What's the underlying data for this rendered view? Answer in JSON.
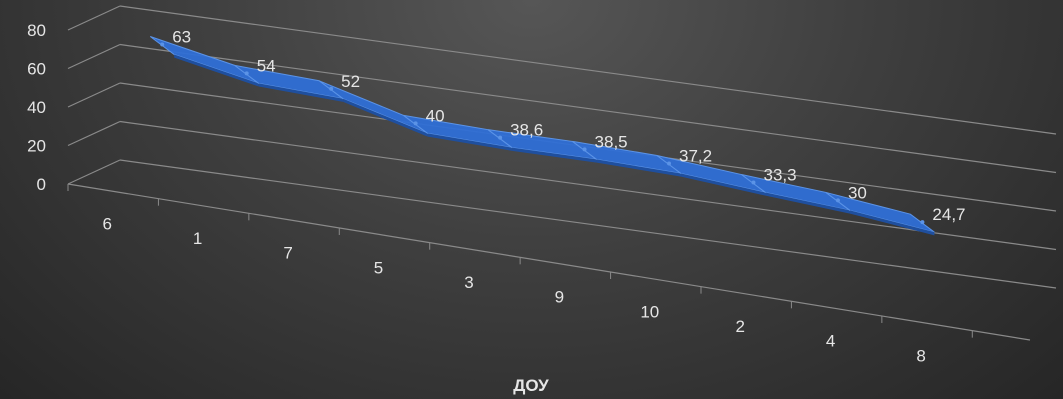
{
  "chart_data": {
    "type": "line",
    "title": "",
    "xlabel": "ДОУ",
    "ylabel": "",
    "categories": [
      "6",
      "1",
      "7",
      "5",
      "3",
      "9",
      "10",
      "2",
      "4",
      "8"
    ],
    "series": [
      {
        "values": [
          63,
          54,
          52,
          40,
          38.6,
          38.5,
          37.2,
          33.3,
          30,
          24.7
        ],
        "data_labels": [
          "63",
          "54",
          "52",
          "40",
          "38,6",
          "38,5",
          "37,2",
          "33,3",
          "30",
          "24,7"
        ]
      }
    ],
    "ylim": [
      0,
      80
    ],
    "y_ticks": [
      0,
      20,
      40,
      60,
      80
    ],
    "grid": true,
    "style": "3d-ribbon",
    "legend": "none",
    "colors": {
      "series": "#2f6fd6",
      "series_dark": "#1f4f9e",
      "series_light": "#5b93e6",
      "grid": "#8a8a8a",
      "text": "#e6e6e6"
    }
  }
}
